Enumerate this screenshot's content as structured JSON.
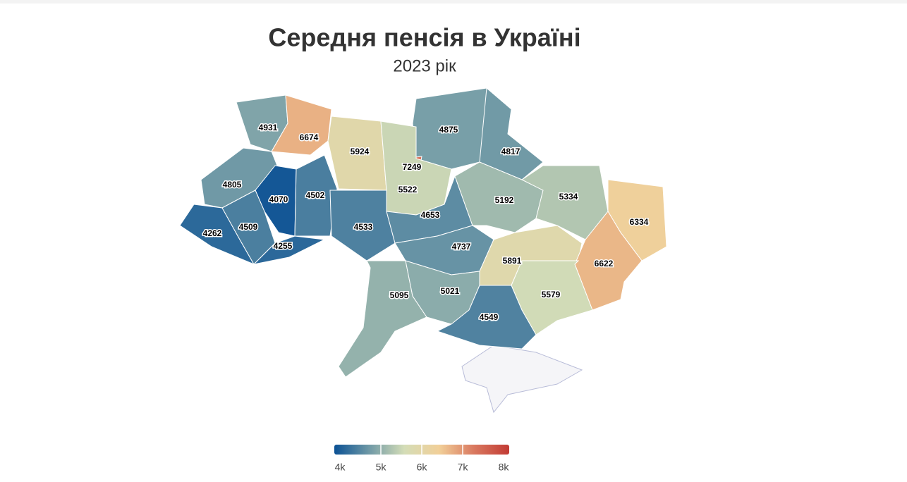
{
  "chart_data": {
    "type": "choropleth",
    "title": "Середня пенсія в Україні",
    "subtitle": "2023 рік",
    "values": [
      4931,
      6674,
      5924,
      4875,
      7249,
      5522,
      4817,
      4805,
      4070,
      4502,
      4262,
      4509,
      4255,
      4533,
      4653,
      5192,
      5334,
      6334,
      4737,
      5891,
      6622,
      5095,
      5021,
      5579,
      4549
    ],
    "clim": [
      4000,
      8000
    ],
    "colorscale": [
      "#0b5194",
      "#6f99a6",
      "#d4ddb7",
      "#f1cf98",
      "#d9785f",
      "#c23b34"
    ],
    "colorbar_ticks": [
      {
        "value": 4000,
        "label": "4k"
      },
      {
        "value": 5000,
        "label": "5k"
      },
      {
        "value": 6000,
        "label": "6k"
      },
      {
        "value": 7000,
        "label": "7k"
      },
      {
        "value": 8000,
        "label": "8k"
      }
    ]
  }
}
